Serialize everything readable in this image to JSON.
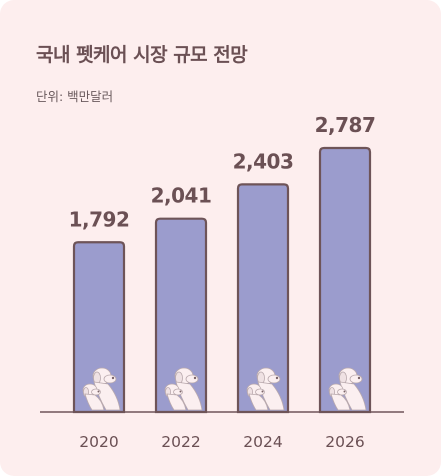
{
  "chart_data": {
    "type": "bar",
    "title": "국내 펫케어 시장 규모 전망",
    "subtitle": "단위: 백만달러",
    "categories": [
      "2020",
      "2022",
      "2024",
      "2026"
    ],
    "values": [
      1792,
      2041,
      2403,
      2787
    ],
    "value_labels": [
      "1,792",
      "2,041",
      "2,403",
      "2,787"
    ],
    "ylim": [
      0,
      2900
    ],
    "grid": false,
    "legend": "none"
  },
  "colors": {
    "background": "#fdeeee",
    "bar_fill": "#9b9ccd",
    "bar_stroke": "#6e5458",
    "text": "#6b5054",
    "axis": "#6e5458",
    "dog": "#fbeff0"
  },
  "icons": [
    "dog-icon"
  ]
}
